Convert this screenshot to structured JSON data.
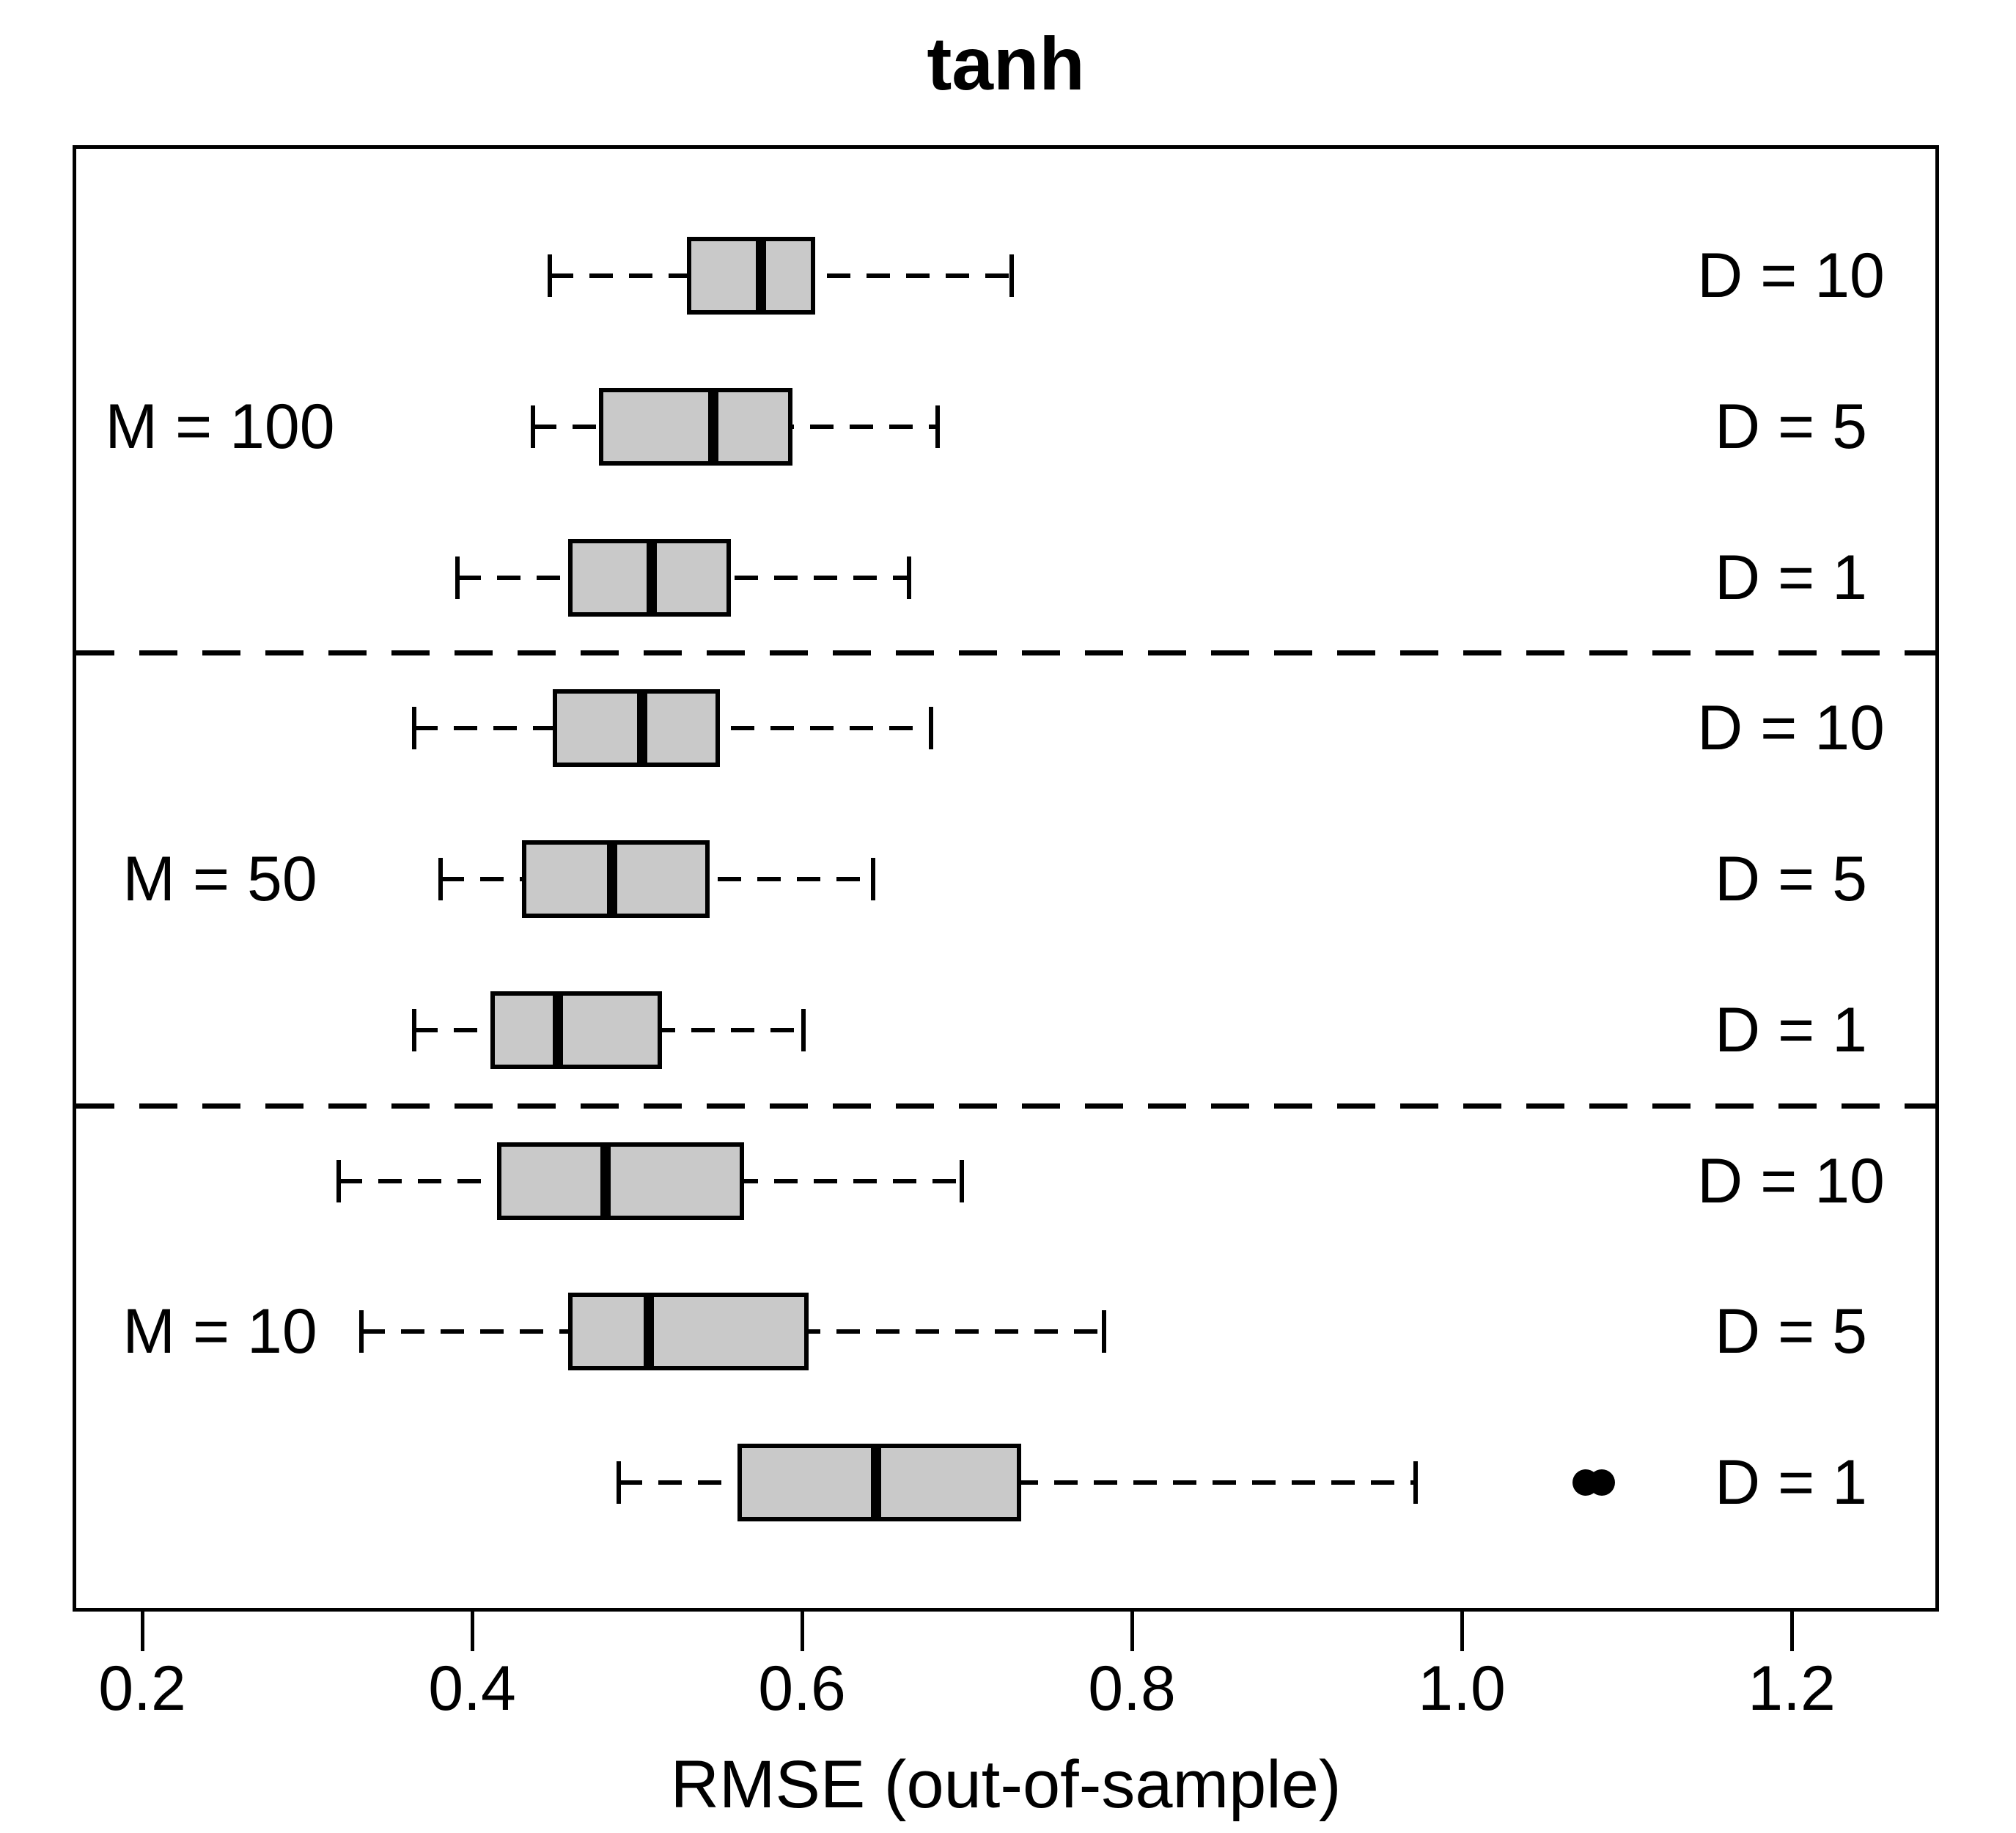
{
  "title": "tanh",
  "x_axis": {
    "label": "RMSE (out-of-sample)",
    "tick_labels": [
      "0.2",
      "0.4",
      "0.6",
      "0.8",
      "1.0",
      "1.2"
    ]
  },
  "chart_data": {
    "type": "boxplot",
    "orientation": "horizontal",
    "title": "tanh",
    "xlabel": "RMSE (out-of-sample)",
    "xlim": [
      0.158,
      1.289
    ],
    "x_ticks": [
      0.2,
      0.4,
      0.6,
      0.8,
      1.0,
      1.2
    ],
    "x_tick_labels": [
      "0.2",
      "0.4",
      "0.6",
      "0.8",
      "1.0",
      "1.2"
    ],
    "grid": false,
    "legend": "none",
    "box_fill": "#c9c9c9",
    "stroke": "#000000",
    "row_label_side": "right",
    "rows": [
      {
        "group": "M = 100",
        "label": "D = 10",
        "whisker_low": 0.447,
        "q1": 0.53,
        "median": 0.575,
        "q3": 0.608,
        "whisker_high": 0.727,
        "outliers": []
      },
      {
        "group": "M = 100",
        "label": "D = 5",
        "whisker_low": 0.437,
        "q1": 0.477,
        "median": 0.546,
        "q3": 0.594,
        "whisker_high": 0.682,
        "outliers": []
      },
      {
        "group": "M = 100",
        "label": "D = 1",
        "whisker_low": 0.391,
        "q1": 0.458,
        "median": 0.509,
        "q3": 0.557,
        "whisker_high": 0.665,
        "outliers": []
      },
      {
        "group": "M = 50",
        "label": "D = 10",
        "whisker_low": 0.365,
        "q1": 0.449,
        "median": 0.503,
        "q3": 0.55,
        "whisker_high": 0.678,
        "outliers": []
      },
      {
        "group": "M = 50",
        "label": "D = 5",
        "whisker_low": 0.381,
        "q1": 0.43,
        "median": 0.485,
        "q3": 0.544,
        "whisker_high": 0.643,
        "outliers": []
      },
      {
        "group": "M = 50",
        "label": "D = 1",
        "whisker_low": 0.365,
        "q1": 0.411,
        "median": 0.452,
        "q3": 0.515,
        "whisker_high": 0.601,
        "outliers": []
      },
      {
        "group": "M = 10",
        "label": "D = 10",
        "whisker_low": 0.319,
        "q1": 0.415,
        "median": 0.481,
        "q3": 0.565,
        "whisker_high": 0.697,
        "outliers": []
      },
      {
        "group": "M = 10",
        "label": "D = 5",
        "whisker_low": 0.333,
        "q1": 0.458,
        "median": 0.507,
        "q3": 0.604,
        "whisker_high": 0.783,
        "outliers": []
      },
      {
        "group": "M = 10",
        "label": "D = 1",
        "whisker_low": 0.489,
        "q1": 0.561,
        "median": 0.645,
        "q3": 0.733,
        "whisker_high": 0.972,
        "outliers": [
          1.075,
          1.085
        ]
      }
    ],
    "group_labels": [
      {
        "text": "M = 100",
        "anchor_row": 1
      },
      {
        "text": "M = 50",
        "anchor_row": 4
      },
      {
        "text": "M = 10",
        "anchor_row": 7
      }
    ],
    "separators_after_rows": [
      2,
      5
    ]
  }
}
